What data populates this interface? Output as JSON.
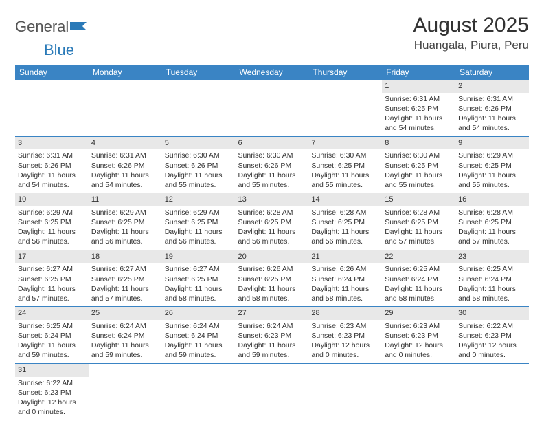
{
  "logo": {
    "word1": "General",
    "word2": "Blue",
    "icon_color": "#2a7ab8"
  },
  "header": {
    "month_title": "August 2025",
    "location": "Huangala, Piura, Peru"
  },
  "colors": {
    "header_bg": "#3a84c4",
    "rule": "#3a84c4",
    "daynum_bg": "#e8e8e8"
  },
  "weekdays": [
    "Sunday",
    "Monday",
    "Tuesday",
    "Wednesday",
    "Thursday",
    "Friday",
    "Saturday"
  ],
  "weeks": [
    [
      null,
      null,
      null,
      null,
      null,
      {
        "n": "1",
        "sr": "Sunrise: 6:31 AM",
        "ss": "Sunset: 6:25 PM",
        "d1": "Daylight: 11 hours",
        "d2": "and 54 minutes."
      },
      {
        "n": "2",
        "sr": "Sunrise: 6:31 AM",
        "ss": "Sunset: 6:26 PM",
        "d1": "Daylight: 11 hours",
        "d2": "and 54 minutes."
      }
    ],
    [
      {
        "n": "3",
        "sr": "Sunrise: 6:31 AM",
        "ss": "Sunset: 6:26 PM",
        "d1": "Daylight: 11 hours",
        "d2": "and 54 minutes."
      },
      {
        "n": "4",
        "sr": "Sunrise: 6:31 AM",
        "ss": "Sunset: 6:26 PM",
        "d1": "Daylight: 11 hours",
        "d2": "and 54 minutes."
      },
      {
        "n": "5",
        "sr": "Sunrise: 6:30 AM",
        "ss": "Sunset: 6:26 PM",
        "d1": "Daylight: 11 hours",
        "d2": "and 55 minutes."
      },
      {
        "n": "6",
        "sr": "Sunrise: 6:30 AM",
        "ss": "Sunset: 6:26 PM",
        "d1": "Daylight: 11 hours",
        "d2": "and 55 minutes."
      },
      {
        "n": "7",
        "sr": "Sunrise: 6:30 AM",
        "ss": "Sunset: 6:25 PM",
        "d1": "Daylight: 11 hours",
        "d2": "and 55 minutes."
      },
      {
        "n": "8",
        "sr": "Sunrise: 6:30 AM",
        "ss": "Sunset: 6:25 PM",
        "d1": "Daylight: 11 hours",
        "d2": "and 55 minutes."
      },
      {
        "n": "9",
        "sr": "Sunrise: 6:29 AM",
        "ss": "Sunset: 6:25 PM",
        "d1": "Daylight: 11 hours",
        "d2": "and 55 minutes."
      }
    ],
    [
      {
        "n": "10",
        "sr": "Sunrise: 6:29 AM",
        "ss": "Sunset: 6:25 PM",
        "d1": "Daylight: 11 hours",
        "d2": "and 56 minutes."
      },
      {
        "n": "11",
        "sr": "Sunrise: 6:29 AM",
        "ss": "Sunset: 6:25 PM",
        "d1": "Daylight: 11 hours",
        "d2": "and 56 minutes."
      },
      {
        "n": "12",
        "sr": "Sunrise: 6:29 AM",
        "ss": "Sunset: 6:25 PM",
        "d1": "Daylight: 11 hours",
        "d2": "and 56 minutes."
      },
      {
        "n": "13",
        "sr": "Sunrise: 6:28 AM",
        "ss": "Sunset: 6:25 PM",
        "d1": "Daylight: 11 hours",
        "d2": "and 56 minutes."
      },
      {
        "n": "14",
        "sr": "Sunrise: 6:28 AM",
        "ss": "Sunset: 6:25 PM",
        "d1": "Daylight: 11 hours",
        "d2": "and 56 minutes."
      },
      {
        "n": "15",
        "sr": "Sunrise: 6:28 AM",
        "ss": "Sunset: 6:25 PM",
        "d1": "Daylight: 11 hours",
        "d2": "and 57 minutes."
      },
      {
        "n": "16",
        "sr": "Sunrise: 6:28 AM",
        "ss": "Sunset: 6:25 PM",
        "d1": "Daylight: 11 hours",
        "d2": "and 57 minutes."
      }
    ],
    [
      {
        "n": "17",
        "sr": "Sunrise: 6:27 AM",
        "ss": "Sunset: 6:25 PM",
        "d1": "Daylight: 11 hours",
        "d2": "and 57 minutes."
      },
      {
        "n": "18",
        "sr": "Sunrise: 6:27 AM",
        "ss": "Sunset: 6:25 PM",
        "d1": "Daylight: 11 hours",
        "d2": "and 57 minutes."
      },
      {
        "n": "19",
        "sr": "Sunrise: 6:27 AM",
        "ss": "Sunset: 6:25 PM",
        "d1": "Daylight: 11 hours",
        "d2": "and 58 minutes."
      },
      {
        "n": "20",
        "sr": "Sunrise: 6:26 AM",
        "ss": "Sunset: 6:25 PM",
        "d1": "Daylight: 11 hours",
        "d2": "and 58 minutes."
      },
      {
        "n": "21",
        "sr": "Sunrise: 6:26 AM",
        "ss": "Sunset: 6:24 PM",
        "d1": "Daylight: 11 hours",
        "d2": "and 58 minutes."
      },
      {
        "n": "22",
        "sr": "Sunrise: 6:25 AM",
        "ss": "Sunset: 6:24 PM",
        "d1": "Daylight: 11 hours",
        "d2": "and 58 minutes."
      },
      {
        "n": "23",
        "sr": "Sunrise: 6:25 AM",
        "ss": "Sunset: 6:24 PM",
        "d1": "Daylight: 11 hours",
        "d2": "and 58 minutes."
      }
    ],
    [
      {
        "n": "24",
        "sr": "Sunrise: 6:25 AM",
        "ss": "Sunset: 6:24 PM",
        "d1": "Daylight: 11 hours",
        "d2": "and 59 minutes."
      },
      {
        "n": "25",
        "sr": "Sunrise: 6:24 AM",
        "ss": "Sunset: 6:24 PM",
        "d1": "Daylight: 11 hours",
        "d2": "and 59 minutes."
      },
      {
        "n": "26",
        "sr": "Sunrise: 6:24 AM",
        "ss": "Sunset: 6:24 PM",
        "d1": "Daylight: 11 hours",
        "d2": "and 59 minutes."
      },
      {
        "n": "27",
        "sr": "Sunrise: 6:24 AM",
        "ss": "Sunset: 6:23 PM",
        "d1": "Daylight: 11 hours",
        "d2": "and 59 minutes."
      },
      {
        "n": "28",
        "sr": "Sunrise: 6:23 AM",
        "ss": "Sunset: 6:23 PM",
        "d1": "Daylight: 12 hours",
        "d2": "and 0 minutes."
      },
      {
        "n": "29",
        "sr": "Sunrise: 6:23 AM",
        "ss": "Sunset: 6:23 PM",
        "d1": "Daylight: 12 hours",
        "d2": "and 0 minutes."
      },
      {
        "n": "30",
        "sr": "Sunrise: 6:22 AM",
        "ss": "Sunset: 6:23 PM",
        "d1": "Daylight: 12 hours",
        "d2": "and 0 minutes."
      }
    ],
    [
      {
        "n": "31",
        "sr": "Sunrise: 6:22 AM",
        "ss": "Sunset: 6:23 PM",
        "d1": "Daylight: 12 hours",
        "d2": "and 0 minutes."
      },
      null,
      null,
      null,
      null,
      null,
      null
    ]
  ]
}
